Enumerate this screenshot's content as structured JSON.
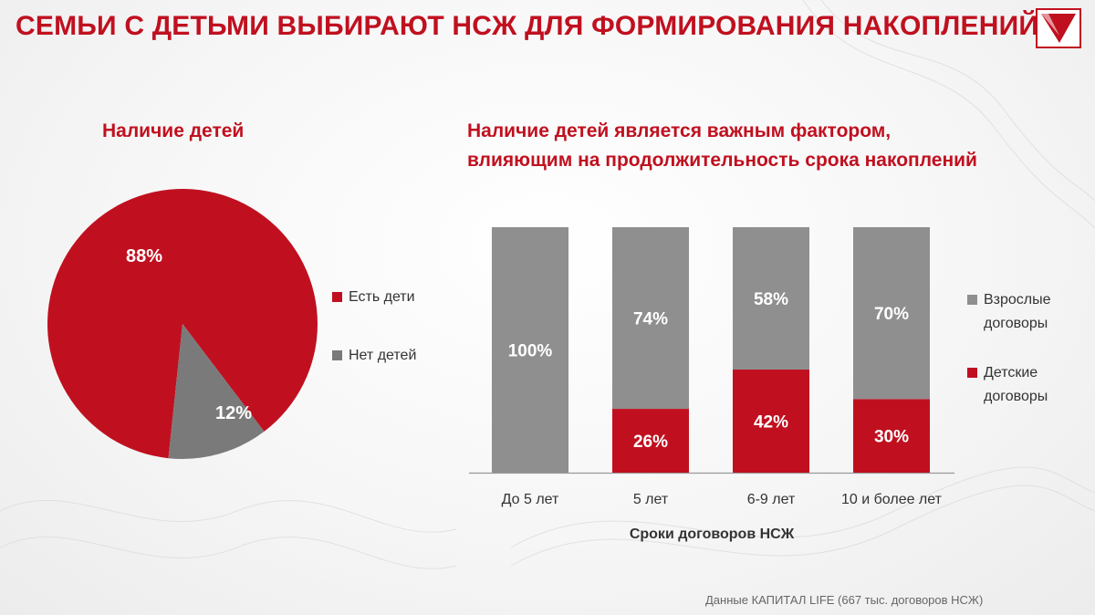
{
  "slide": {
    "title": "СЕМЬИ С ДЕТЬМИ ВЫБИРАЮТ НСЖ ДЛЯ ФОРМИРОВАНИЯ НАКОПЛЕНИЙ",
    "source": "Данные КАПИТАЛ LIFE (667 тыс. договоров НСЖ)",
    "logo_icon": "checkmark-logo-icon"
  },
  "colors": {
    "red": "#c0101f",
    "gray": "#8f8f8f",
    "pie_gray": "#7a7a7a"
  },
  "chart_data": [
    {
      "type": "pie",
      "title": "Наличие детей",
      "slices": [
        {
          "label": "Есть дети",
          "value": 88,
          "display": "88%",
          "color": "#c0101f"
        },
        {
          "label": "Нет детей",
          "value": 12,
          "display": "12%",
          "color": "#7a7a7a"
        }
      ],
      "legend": [
        "Есть дети",
        "Нет детей"
      ],
      "legend_position": "right"
    },
    {
      "type": "bar",
      "stacked": true,
      "title_lines": [
        "Наличие детей является важным фактором,",
        "влияющим на продолжительность срока накоплений"
      ],
      "categories": [
        "До 5 лет",
        "5 лет",
        "6-9 лет",
        "10 и более лет"
      ],
      "xlabel": "Сроки договоров НСЖ",
      "ylim": [
        0,
        100
      ],
      "series": [
        {
          "name": "Детские договоры",
          "name_lines": [
            "Детские",
            "договоры"
          ],
          "values": [
            0,
            26,
            42,
            30
          ],
          "labels": [
            "",
            "26%",
            "42%",
            "30%"
          ],
          "color": "#c0101f"
        },
        {
          "name": "Взрослые договоры",
          "name_lines": [
            "Взрослые",
            "договоры"
          ],
          "values": [
            100,
            74,
            58,
            70
          ],
          "labels": [
            "100%",
            "74%",
            "58%",
            "70%"
          ],
          "color": "#8f8f8f"
        }
      ],
      "legend_position": "right",
      "grid": false
    }
  ]
}
